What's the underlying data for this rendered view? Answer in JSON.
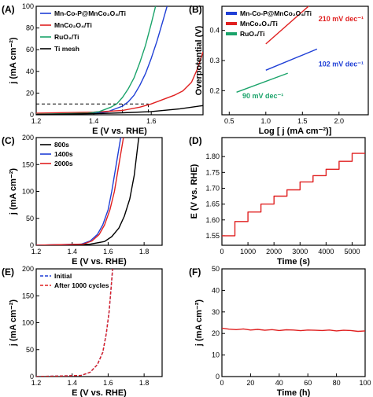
{
  "chart_data": [
    {
      "id": "A",
      "panel_label": "(A)",
      "type": "line",
      "xlabel": "E (V vs. RHE)",
      "ylabel": "j (mA cm⁻²)",
      "xlim": [
        1.2,
        1.78
      ],
      "ylim": [
        0,
        100
      ],
      "xticks": [
        1.2,
        1.4,
        1.6
      ],
      "yticks": [
        0,
        20,
        40,
        60,
        80,
        100
      ],
      "legend": "top-left",
      "series": [
        {
          "name": "Mn-Co-P@MnCo₂O₄/Ti",
          "color": "#1f3fd6",
          "x": [
            1.2,
            1.4,
            1.45,
            1.5,
            1.52,
            1.54,
            1.56,
            1.58,
            1.6,
            1.62,
            1.64,
            1.655
          ],
          "y": [
            0.5,
            1.2,
            3,
            8,
            12,
            18,
            27,
            38,
            52,
            68,
            86,
            100
          ]
        },
        {
          "name": "MnCo₂O₄/Ti",
          "color": "#e02020",
          "x": [
            1.2,
            1.4,
            1.5,
            1.56,
            1.6,
            1.64,
            1.68,
            1.71,
            1.74,
            1.76,
            1.78
          ],
          "y": [
            1.5,
            2.5,
            4,
            7,
            10,
            14,
            18,
            22,
            30,
            42,
            58
          ]
        },
        {
          "name": "RuO₂/Ti",
          "color": "#1aa36a",
          "x": [
            1.2,
            1.38,
            1.42,
            1.46,
            1.48,
            1.5,
            1.52,
            1.54,
            1.56,
            1.58,
            1.6,
            1.615
          ],
          "y": [
            0.5,
            1.5,
            3,
            7,
            10,
            16,
            24,
            34,
            48,
            64,
            84,
            100
          ]
        },
        {
          "name": "Ti mesh",
          "color": "#000000",
          "x": [
            1.2,
            1.4,
            1.5,
            1.6,
            1.7,
            1.78
          ],
          "y": [
            0.2,
            1,
            1.8,
            3,
            5.5,
            8.5
          ]
        }
      ],
      "reference": {
        "y": 10,
        "x_marks": [
          1.5,
          1.59
        ]
      }
    },
    {
      "id": "B",
      "panel_label": "(B)",
      "type": "line",
      "xlabel": "Log [ j (mA cm⁻²)]",
      "ylabel": "Overpotential (V)",
      "xlim": [
        0.4,
        2.4
      ],
      "ylim": [
        0.12,
        0.48
      ],
      "xticks": [
        0.5,
        1.0,
        1.5,
        2.0
      ],
      "yticks": [
        0.2,
        0.3,
        0.4
      ],
      "legend": "top-left",
      "series": [
        {
          "name": "Mn-Co-P@MnCo₂O₄/Ti",
          "color": "#1f3fd6",
          "x": [
            1.0,
            1.7
          ],
          "y": [
            0.268,
            0.338
          ]
        },
        {
          "name": "MnCo₂O₄/Ti",
          "color": "#e02020",
          "x": [
            1.0,
            1.7
          ],
          "y": [
            0.355,
            0.505
          ]
        },
        {
          "name": "RuO₂/Ti",
          "color": "#1aa36a",
          "x": [
            0.6,
            1.3
          ],
          "y": [
            0.195,
            0.258
          ]
        }
      ],
      "annotations": [
        {
          "text": "210 mV dec⁻¹",
          "color": "#e02020",
          "x": 1.72,
          "y": 0.43
        },
        {
          "text": "102 mV dec⁻¹",
          "color": "#1f3fd6",
          "x": 1.72,
          "y": 0.28
        },
        {
          "text": "90 mV dec⁻¹",
          "color": "#1aa36a",
          "x": 0.68,
          "y": 0.175
        }
      ]
    },
    {
      "id": "C",
      "panel_label": "(C)",
      "type": "line",
      "xlabel": "E (V vs. RHE)",
      "ylabel": "j (mA cm⁻²)",
      "xlim": [
        1.2,
        1.9
      ],
      "ylim": [
        0,
        200
      ],
      "xticks": [
        1.2,
        1.4,
        1.6,
        1.8
      ],
      "yticks": [
        0,
        50,
        100,
        150,
        200
      ],
      "legend": "top-left",
      "series": [
        {
          "name": "800s",
          "color": "#000000",
          "x": [
            1.2,
            1.5,
            1.58,
            1.62,
            1.66,
            1.69,
            1.72,
            1.745,
            1.77
          ],
          "y": [
            0,
            2,
            7,
            16,
            32,
            54,
            86,
            130,
            200
          ]
        },
        {
          "name": "1400s",
          "color": "#1f3fd6",
          "x": [
            1.2,
            1.45,
            1.5,
            1.54,
            1.57,
            1.6,
            1.62,
            1.645,
            1.67
          ],
          "y": [
            0,
            2,
            8,
            20,
            38,
            66,
            100,
            150,
            200
          ]
        },
        {
          "name": "2000s",
          "color": "#e02020",
          "x": [
            1.2,
            1.46,
            1.51,
            1.55,
            1.58,
            1.61,
            1.635,
            1.66,
            1.685
          ],
          "y": [
            0,
            2,
            8,
            20,
            38,
            66,
            100,
            150,
            200
          ]
        }
      ]
    },
    {
      "id": "D",
      "panel_label": "(D)",
      "type": "line",
      "xlabel": "Time (s)",
      "ylabel": "E (V vs. RHE)",
      "xlim": [
        0,
        5500
      ],
      "ylim": [
        1.52,
        1.86
      ],
      "xticks": [
        0,
        1000,
        2000,
        3000,
        4000,
        5000
      ],
      "yticks": [
        1.55,
        1.6,
        1.65,
        1.7,
        1.75,
        1.8
      ],
      "series": [
        {
          "name": "",
          "color": "#e02020",
          "x": [
            0,
            500,
            500,
            1000,
            1000,
            1500,
            1500,
            2000,
            2000,
            2500,
            2500,
            3000,
            3000,
            3500,
            3500,
            4000,
            4000,
            4500,
            4500,
            5000,
            5000,
            5500
          ],
          "y": [
            1.55,
            1.55,
            1.595,
            1.595,
            1.625,
            1.625,
            1.65,
            1.65,
            1.675,
            1.675,
            1.695,
            1.695,
            1.72,
            1.72,
            1.74,
            1.74,
            1.76,
            1.76,
            1.785,
            1.785,
            1.81,
            1.81
          ]
        }
      ]
    },
    {
      "id": "E",
      "panel_label": "(E)",
      "type": "line",
      "xlabel": "E (V vs. RHE)",
      "ylabel": "j (mA cm⁻²)",
      "xlim": [
        1.2,
        1.9
      ],
      "ylim": [
        0,
        200
      ],
      "xticks": [
        1.2,
        1.4,
        1.6,
        1.8
      ],
      "yticks": [
        0,
        50,
        100,
        150,
        200
      ],
      "legend": "top-left",
      "series": [
        {
          "name": "Initial",
          "color": "#1f3fd6",
          "dash": "4,2",
          "x": [
            1.2,
            1.45,
            1.5,
            1.54,
            1.57,
            1.59,
            1.605,
            1.615,
            1.625
          ],
          "y": [
            0,
            2,
            8,
            22,
            45,
            80,
            120,
            160,
            200
          ]
        },
        {
          "name": "After 1000 cycles",
          "color": "#e02020",
          "dash": "4,2",
          "x": [
            1.2,
            1.45,
            1.5,
            1.54,
            1.57,
            1.59,
            1.605,
            1.615,
            1.625
          ],
          "y": [
            0,
            2,
            8,
            22,
            45,
            80,
            120,
            160,
            200
          ]
        }
      ]
    },
    {
      "id": "F",
      "panel_label": "(F)",
      "type": "line",
      "xlabel": "Time (h)",
      "ylabel": "j (mA cm⁻²)",
      "xlim": [
        0,
        100
      ],
      "ylim": [
        0,
        50
      ],
      "xticks": [
        0,
        20,
        40,
        60,
        80,
        100
      ],
      "yticks": [
        0,
        10,
        20,
        30,
        40,
        50
      ],
      "series": [
        {
          "name": "",
          "color": "#e02020",
          "x": [
            0,
            5,
            10,
            15,
            20,
            25,
            30,
            35,
            40,
            45,
            50,
            55,
            60,
            65,
            70,
            75,
            80,
            85,
            90,
            95,
            100
          ],
          "y": [
            22.5,
            22.0,
            21.8,
            22.1,
            21.6,
            21.9,
            21.5,
            21.8,
            21.4,
            21.7,
            21.6,
            21.3,
            21.6,
            21.5,
            21.4,
            21.6,
            21.2,
            21.5,
            21.4,
            21.0,
            21.2
          ]
        }
      ]
    }
  ]
}
